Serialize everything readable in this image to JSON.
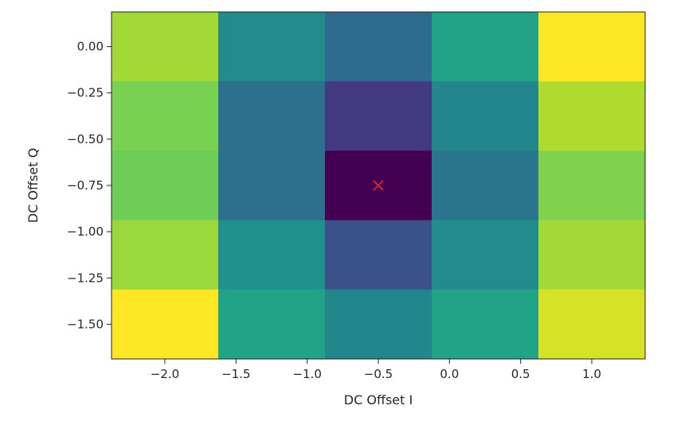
{
  "chart_data": {
    "type": "heatmap",
    "title": "",
    "xlabel": "DC Offset I",
    "ylabel": "DC Offset Q",
    "xlim": [
      -2.375,
      1.375
    ],
    "ylim": [
      -1.6875,
      0.1875
    ],
    "x_centers": [
      -2.0,
      -1.25,
      -0.5,
      0.25,
      1.0
    ],
    "y_centers": [
      0.0,
      -0.375,
      -0.75,
      -1.125,
      -1.5
    ],
    "x_ticks": [
      {
        "value": -2.0,
        "label": "−2.0"
      },
      {
        "value": -1.5,
        "label": "−1.5"
      },
      {
        "value": -1.0,
        "label": "−1.0"
      },
      {
        "value": -0.5,
        "label": "−0.5"
      },
      {
        "value": 0.0,
        "label": "0.0"
      },
      {
        "value": 0.5,
        "label": "0.5"
      },
      {
        "value": 1.0,
        "label": "1.0"
      }
    ],
    "y_ticks": [
      {
        "value": 0.0,
        "label": "0.00"
      },
      {
        "value": -0.25,
        "label": "−0.25"
      },
      {
        "value": -0.5,
        "label": "−0.50"
      },
      {
        "value": -0.75,
        "label": "−0.75"
      },
      {
        "value": -1.0,
        "label": "−1.00"
      },
      {
        "value": -1.25,
        "label": "−1.25"
      },
      {
        "value": -1.5,
        "label": "−1.50"
      }
    ],
    "colormap": "viridis",
    "cells": [
      {
        "x_lo": -2.375,
        "x_hi": -1.625,
        "y_lo": -0.1875,
        "y_hi": 0.1875,
        "value": 0.86
      },
      {
        "x_lo": -1.625,
        "x_hi": -0.875,
        "y_lo": -0.1875,
        "y_hi": 0.1875,
        "value": 0.48
      },
      {
        "x_lo": -0.875,
        "x_hi": -0.125,
        "y_lo": -0.1875,
        "y_hi": 0.1875,
        "value": 0.35
      },
      {
        "x_lo": -0.125,
        "x_hi": 0.625,
        "y_lo": -0.1875,
        "y_hi": 0.1875,
        "value": 0.58
      },
      {
        "x_lo": 0.625,
        "x_hi": 1.375,
        "y_lo": -0.1875,
        "y_hi": 0.1875,
        "value": 1.0
      },
      {
        "x_lo": -2.375,
        "x_hi": -1.625,
        "y_lo": -0.5625,
        "y_hi": -0.1875,
        "value": 0.8
      },
      {
        "x_lo": -1.625,
        "x_hi": -0.875,
        "y_lo": -0.5625,
        "y_hi": -0.1875,
        "value": 0.37
      },
      {
        "x_lo": -0.875,
        "x_hi": -0.125,
        "y_lo": -0.5625,
        "y_hi": -0.1875,
        "value": 0.17
      },
      {
        "x_lo": -0.125,
        "x_hi": 0.625,
        "y_lo": -0.5625,
        "y_hi": -0.1875,
        "value": 0.46
      },
      {
        "x_lo": 0.625,
        "x_hi": 1.375,
        "y_lo": -0.5625,
        "y_hi": -0.1875,
        "value": 0.88
      },
      {
        "x_lo": -2.375,
        "x_hi": -1.625,
        "y_lo": -0.9375,
        "y_hi": -0.5625,
        "value": 0.78
      },
      {
        "x_lo": -1.625,
        "x_hi": -0.875,
        "y_lo": -0.9375,
        "y_hi": -0.5625,
        "value": 0.37
      },
      {
        "x_lo": -0.875,
        "x_hi": -0.125,
        "y_lo": -0.9375,
        "y_hi": -0.5625,
        "value": 0.0
      },
      {
        "x_lo": -0.125,
        "x_hi": 0.625,
        "y_lo": -0.9375,
        "y_hi": -0.5625,
        "value": 0.39
      },
      {
        "x_lo": 0.625,
        "x_hi": 1.375,
        "y_lo": -0.9375,
        "y_hi": -0.5625,
        "value": 0.81
      },
      {
        "x_lo": -2.375,
        "x_hi": -1.625,
        "y_lo": -1.3125,
        "y_hi": -0.9375,
        "value": 0.85
      },
      {
        "x_lo": -1.625,
        "x_hi": -0.875,
        "y_lo": -1.3125,
        "y_hi": -0.9375,
        "value": 0.5
      },
      {
        "x_lo": -0.875,
        "x_hi": -0.125,
        "y_lo": -1.3125,
        "y_hi": -0.9375,
        "value": 0.25
      },
      {
        "x_lo": -0.125,
        "x_hi": 0.625,
        "y_lo": -1.3125,
        "y_hi": -0.9375,
        "value": 0.48
      },
      {
        "x_lo": 0.625,
        "x_hi": 1.375,
        "y_lo": -1.3125,
        "y_hi": -0.9375,
        "value": 0.86
      },
      {
        "x_lo": -2.375,
        "x_hi": -1.625,
        "y_lo": -1.6875,
        "y_hi": -1.3125,
        "value": 1.0
      },
      {
        "x_lo": -1.625,
        "x_hi": -0.875,
        "y_lo": -1.6875,
        "y_hi": -1.3125,
        "value": 0.58
      },
      {
        "x_lo": -0.875,
        "x_hi": -0.125,
        "y_lo": -1.6875,
        "y_hi": -1.3125,
        "value": 0.46
      },
      {
        "x_lo": -0.125,
        "x_hi": 0.625,
        "y_lo": -1.6875,
        "y_hi": -1.3125,
        "value": 0.58
      },
      {
        "x_lo": 0.625,
        "x_hi": 1.375,
        "y_lo": -1.6875,
        "y_hi": -1.3125,
        "value": 0.94
      }
    ],
    "marker": {
      "x": -0.5,
      "y": -0.75,
      "symbol": "x",
      "color": "#e8292b"
    },
    "grid": false,
    "legend": false
  }
}
